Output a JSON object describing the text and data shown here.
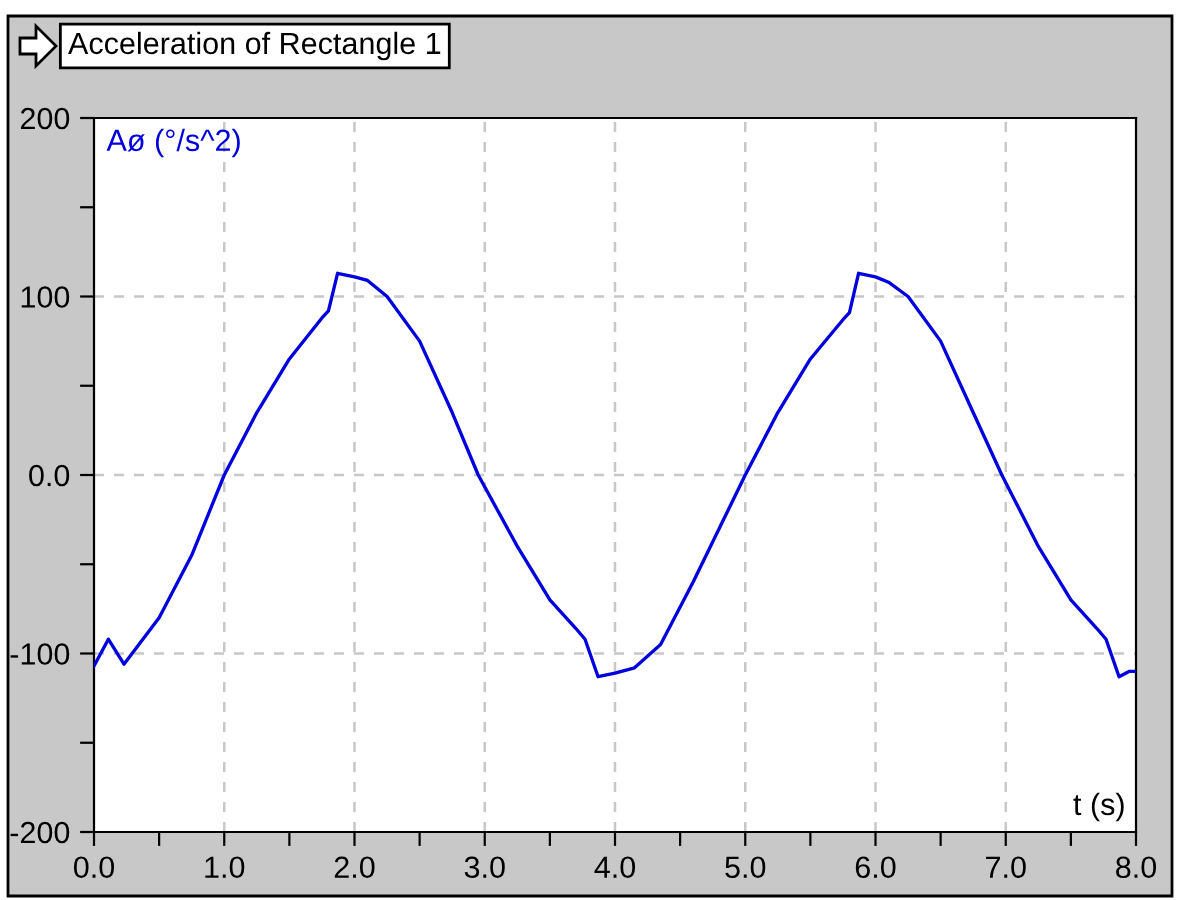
{
  "chart_data": {
    "type": "line",
    "title": "Acceleration of Rectangle 1",
    "ylabel": "Aø (°/s^2)",
    "xlabel": "t (s)",
    "series": [
      {
        "color": "#0000dd",
        "x": [
          0,
          0.11,
          0.23,
          0.5,
          0.75,
          1.0,
          1.25,
          1.5,
          1.75,
          1.8,
          1.87,
          2.0,
          2.1,
          2.25,
          2.5,
          2.75,
          2.95,
          3.25,
          3.5,
          3.7,
          3.77,
          3.87,
          4.0,
          4.15,
          4.35,
          4.6,
          4.8,
          5.0,
          5.25,
          5.5,
          5.75,
          5.8,
          5.87,
          6.0,
          6.1,
          6.25,
          6.5,
          6.75,
          6.97,
          7.25,
          7.5,
          7.7,
          7.77,
          7.87,
          7.95,
          8.0
        ],
        "values": [
          -107,
          -92,
          -106,
          -80,
          -45,
          0,
          35,
          65,
          88,
          92,
          113,
          111,
          109,
          100,
          75,
          35,
          0,
          -40,
          -70,
          -86,
          -92,
          -113,
          -111,
          -108,
          -95,
          -60,
          -30,
          0,
          35,
          65,
          87,
          91,
          113,
          111,
          108,
          100,
          75,
          35,
          0,
          -40,
          -70,
          -86,
          -92,
          -113,
          -110,
          -110
        ]
      }
    ],
    "xlim": [
      0,
      8
    ],
    "ylim": [
      -200,
      200
    ],
    "xticks": [
      {
        "value": 0,
        "label": "0.0"
      },
      {
        "value": 0.5,
        "label": null
      },
      {
        "value": 1,
        "label": "1.0"
      },
      {
        "value": 1.5,
        "label": null
      },
      {
        "value": 2,
        "label": "2.0"
      },
      {
        "value": 2.5,
        "label": null
      },
      {
        "value": 3,
        "label": "3.0"
      },
      {
        "value": 3.5,
        "label": null
      },
      {
        "value": 4,
        "label": "4.0"
      },
      {
        "value": 4.5,
        "label": null
      },
      {
        "value": 5,
        "label": "5.0"
      },
      {
        "value": 5.5,
        "label": null
      },
      {
        "value": 6,
        "label": "6.0"
      },
      {
        "value": 6.5,
        "label": null
      },
      {
        "value": 7,
        "label": "7.0"
      },
      {
        "value": 7.5,
        "label": null
      },
      {
        "value": 8,
        "label": "8.0"
      }
    ],
    "yticks": [
      -200,
      {
        "value": -150,
        "label": null
      },
      -100,
      {
        "value": -50,
        "label": null
      },
      {
        "value": 0,
        "label": "0.0"
      },
      {
        "value": 50,
        "label": null
      },
      100,
      {
        "value": 150,
        "label": null
      },
      200
    ],
    "grid": true,
    "line_style": "solid",
    "marker": "none",
    "legend": false
  }
}
